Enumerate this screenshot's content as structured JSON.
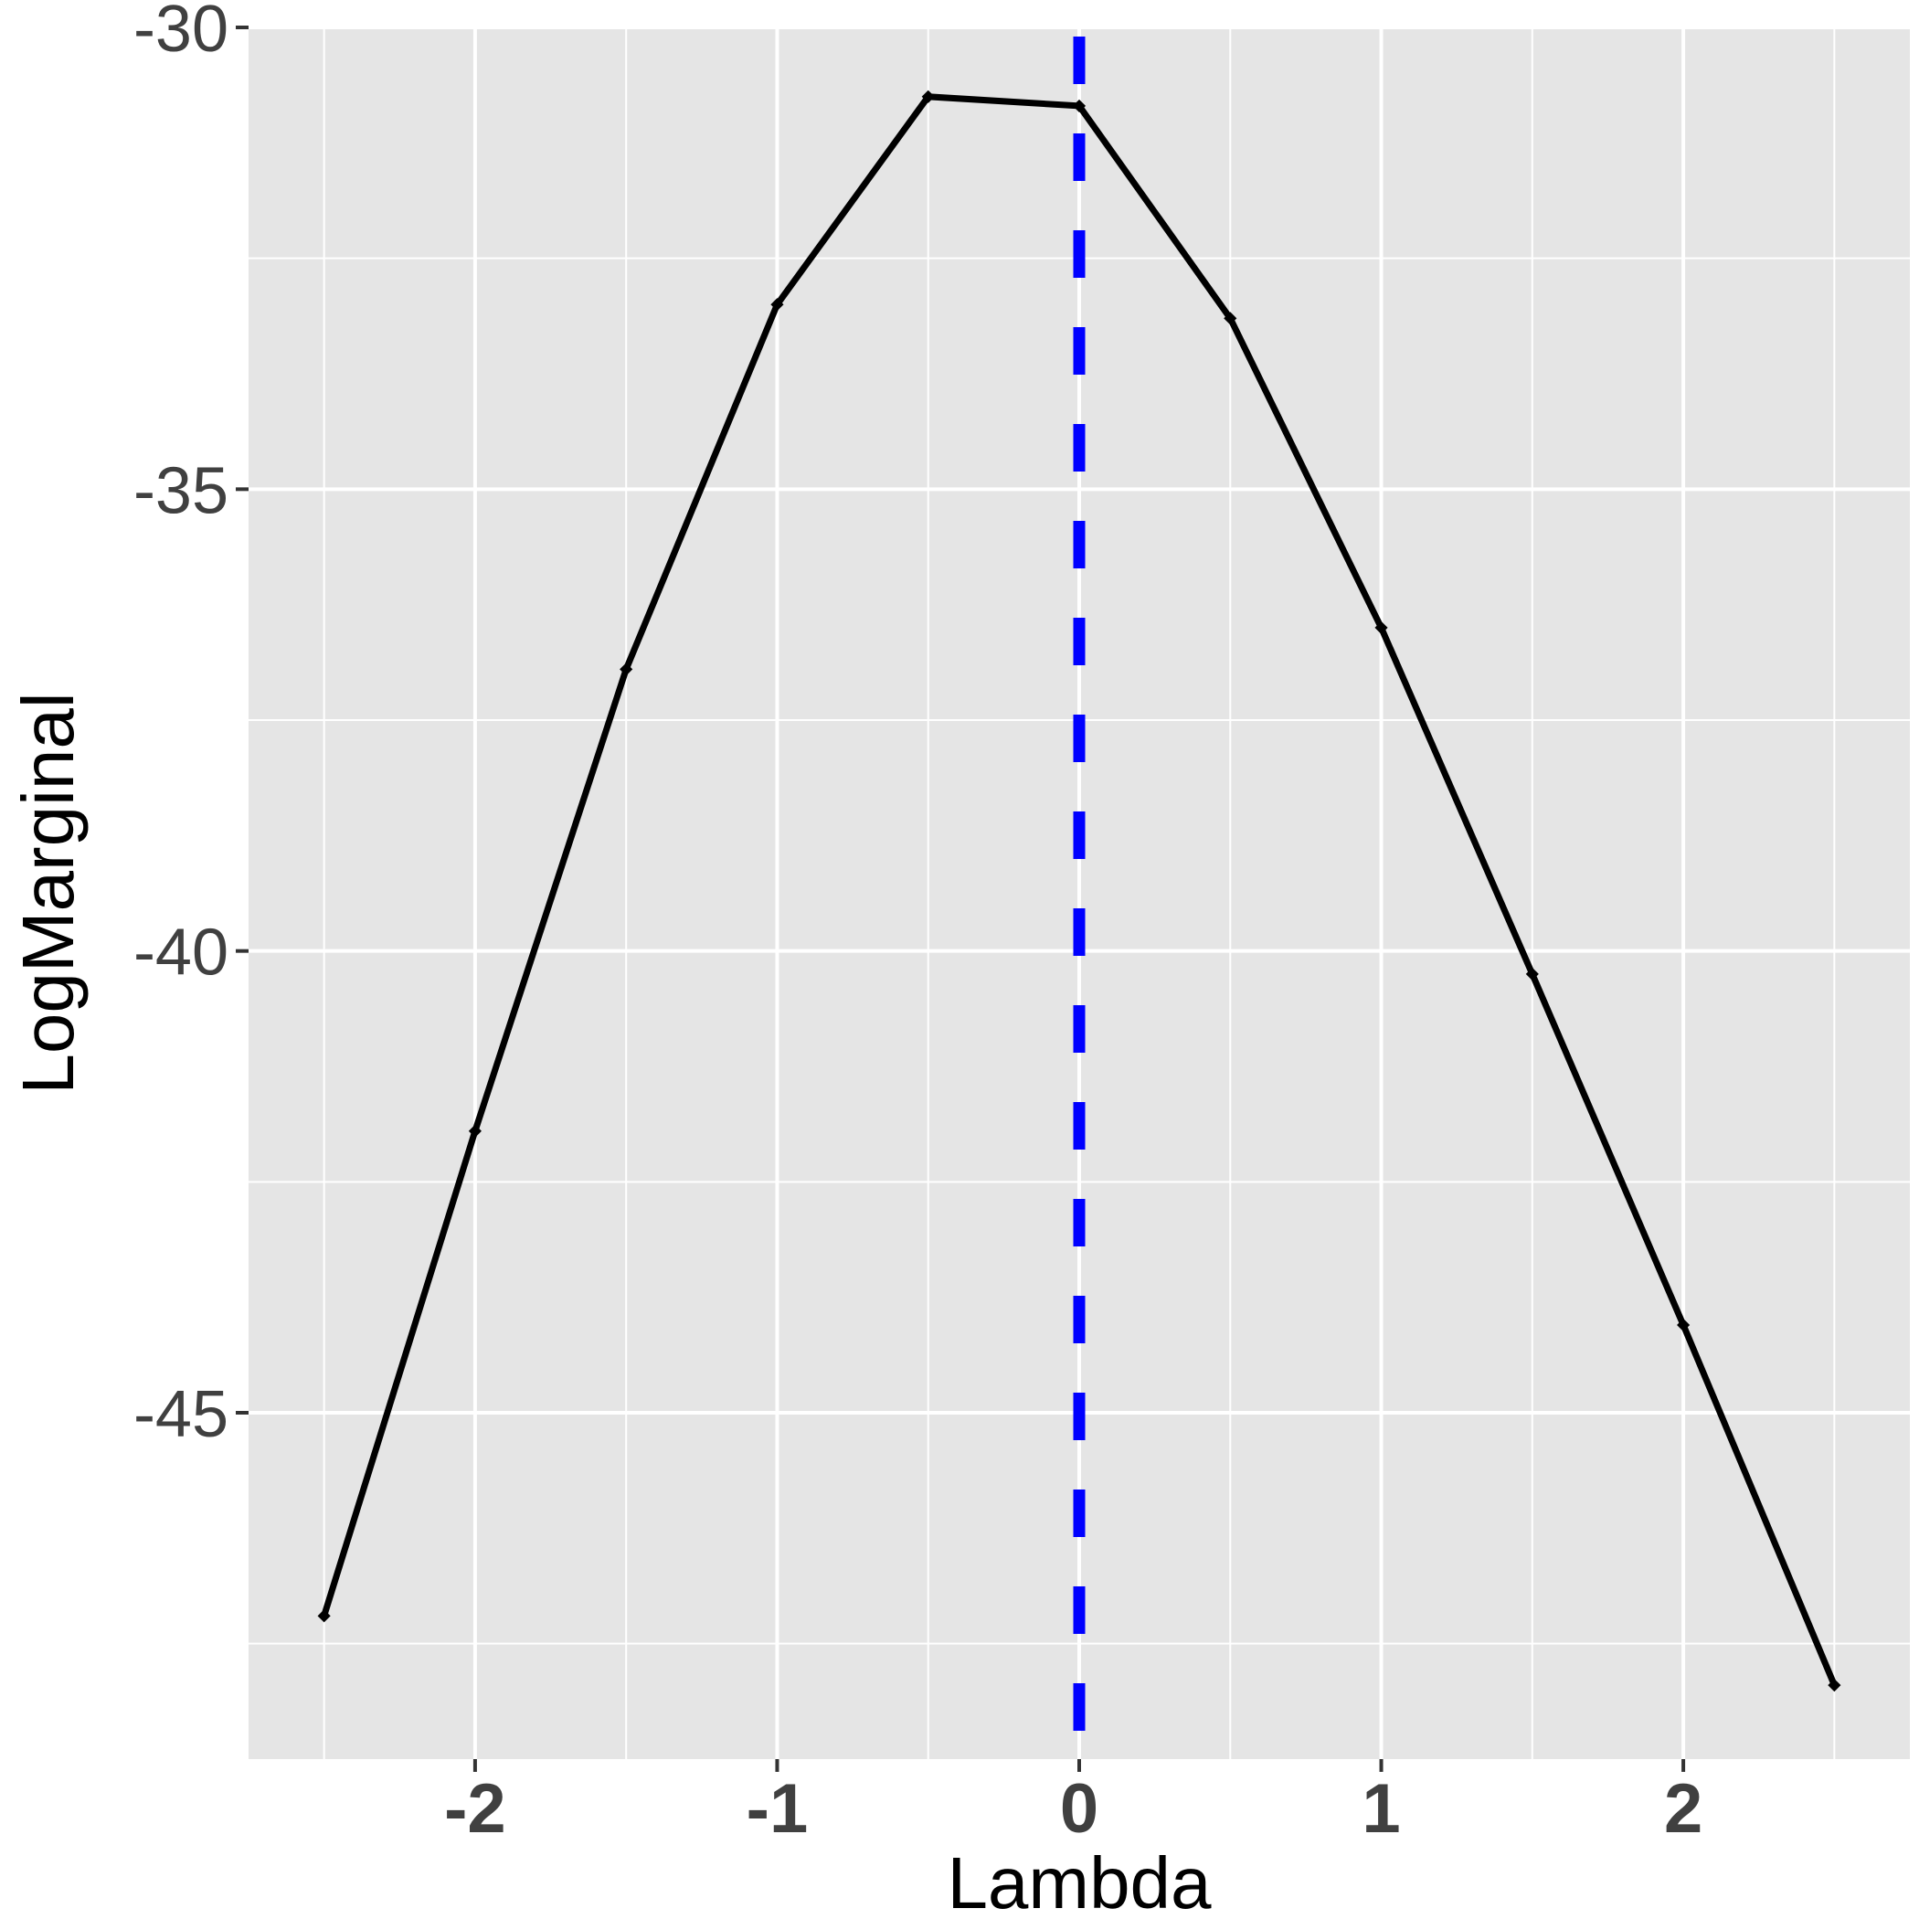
{
  "chart_data": {
    "type": "line",
    "title": "",
    "xlabel": "Lambda",
    "ylabel": "LogMarginal",
    "x": [
      -2.5,
      -2,
      -1.5,
      -1,
      -0.5,
      0,
      0.5,
      1,
      1.5,
      2,
      2.5
    ],
    "series": [
      {
        "values": [
          -47.2,
          -41.95,
          -36.95,
          -33.0,
          -30.75,
          -30.85,
          -33.15,
          -36.5,
          -40.25,
          -44.05,
          -47.95
        ],
        "color": "#000000"
      }
    ],
    "reference_line": {
      "orientation": "vertical",
      "x": 0,
      "style": "dashed",
      "color": "#0000ff"
    },
    "xlim": [
      -2.75,
      2.75
    ],
    "ylim": [
      -48.75,
      -30.0
    ],
    "x_ticks": [
      -2,
      -1,
      0,
      1,
      2
    ],
    "x_tick_labels": [
      "-2",
      "-1",
      "0",
      "1",
      "2"
    ],
    "y_ticks": [
      -30,
      -35,
      -40,
      -45
    ],
    "y_tick_labels": [
      "-30",
      "-35",
      "-40",
      "-45"
    ],
    "grid": true,
    "panel_background": "#e5e5e5",
    "grid_color": "#ffffff"
  }
}
